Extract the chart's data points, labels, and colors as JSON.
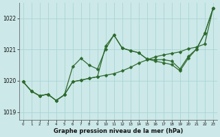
{
  "background_color": "#cce8e8",
  "grid_color": "#aad4d4",
  "line_color": "#2d6a2d",
  "xlabel": "Graphe pression niveau de la mer (hPa)",
  "ylim": [
    1018.75,
    1022.5
  ],
  "yticks": [
    1019,
    1020,
    1021,
    1022
  ],
  "xlim": [
    -0.5,
    23.5
  ],
  "xticks": [
    0,
    1,
    2,
    3,
    4,
    5,
    6,
    7,
    8,
    9,
    10,
    11,
    12,
    13,
    14,
    15,
    16,
    17,
    18,
    19,
    20,
    21,
    22,
    23
  ],
  "series": [
    [
      1019.97,
      1019.67,
      1019.52,
      1019.57,
      1019.37,
      1019.55,
      1019.97,
      1020.02,
      1020.08,
      1020.13,
      1020.18,
      1020.23,
      1020.32,
      1020.43,
      1020.57,
      1020.67,
      1020.77,
      1020.83,
      1020.88,
      1020.93,
      1021.03,
      1021.08,
      1021.18,
      1022.32
    ],
    [
      1019.97,
      1019.67,
      1019.52,
      1019.57,
      1019.37,
      1019.55,
      1020.45,
      1020.72,
      1020.5,
      1020.38,
      1021.02,
      1021.47,
      1021.05,
      1020.97,
      1020.9,
      1020.7,
      1020.68,
      1020.68,
      1020.63,
      1020.38,
      1020.78,
      1021.02,
      1021.53,
      1022.32
    ],
    [
      1019.97,
      1019.67,
      1019.52,
      1019.57,
      1019.37,
      1019.55,
      1019.97,
      1020.02,
      1020.08,
      1020.13,
      1021.12,
      1021.47,
      1021.05,
      1020.97,
      1020.9,
      1020.7,
      1020.63,
      1020.58,
      1020.52,
      1020.32,
      1020.72,
      1021.02,
      1021.52,
      1022.32
    ]
  ],
  "marker_style": "D",
  "marker_size": 2.5,
  "line_width": 0.9
}
